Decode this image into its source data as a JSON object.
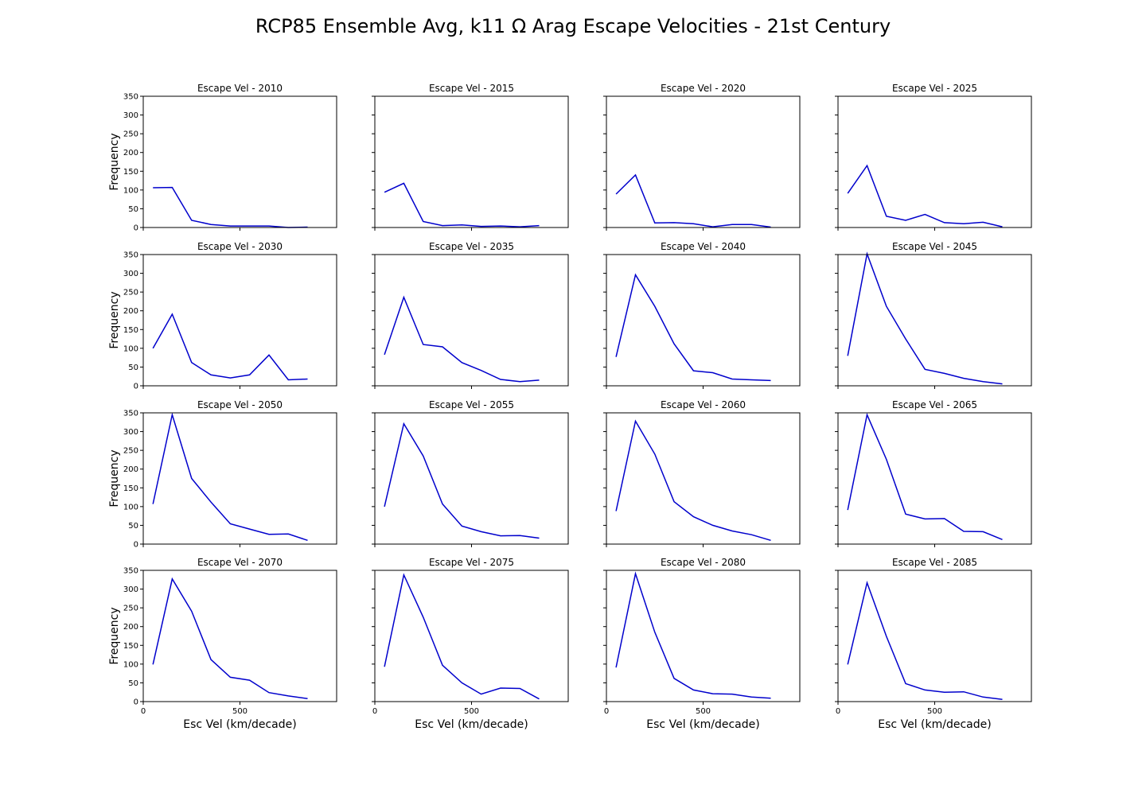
{
  "chart_title": "RCP85 Ensemble Avg, k11 Ω Arag Escape Velocities - 21st Century",
  "line_color": "#0000cc",
  "shared_axes": {
    "xlabel": "Esc Vel (km/decade)",
    "ylabel": "Frequency",
    "xlim": [
      0,
      1000
    ],
    "ylim": [
      0,
      350
    ],
    "xticks": [
      0,
      500
    ],
    "yticks": [
      0,
      50,
      100,
      150,
      200,
      250,
      300,
      350
    ],
    "grid": false
  },
  "chart_data": [
    {
      "type": "line",
      "title": "Escape Vel - 2010",
      "x": [
        50,
        150,
        250,
        350,
        450,
        550,
        650,
        750,
        850
      ],
      "y": [
        106,
        107,
        19,
        8,
        4,
        4,
        4,
        0,
        1
      ]
    },
    {
      "type": "line",
      "title": "Escape Vel - 2015",
      "x": [
        50,
        150,
        250,
        350,
        450,
        550,
        650,
        750,
        850
      ],
      "y": [
        94,
        118,
        16,
        5,
        7,
        3,
        4,
        2,
        5
      ]
    },
    {
      "type": "line",
      "title": "Escape Vel - 2020",
      "x": [
        50,
        150,
        250,
        350,
        450,
        550,
        650,
        750,
        850
      ],
      "y": [
        89,
        140,
        12,
        13,
        10,
        2,
        8,
        8,
        1
      ]
    },
    {
      "type": "line",
      "title": "Escape Vel - 2025",
      "x": [
        50,
        150,
        250,
        350,
        450,
        550,
        650,
        750,
        850
      ],
      "y": [
        91,
        165,
        30,
        19,
        35,
        13,
        10,
        14,
        2
      ]
    },
    {
      "type": "line",
      "title": "Escape Vel - 2030",
      "x": [
        50,
        150,
        250,
        350,
        450,
        550,
        650,
        750,
        850
      ],
      "y": [
        100,
        191,
        62,
        29,
        21,
        29,
        82,
        16,
        18
      ]
    },
    {
      "type": "line",
      "title": "Escape Vel - 2035",
      "x": [
        50,
        150,
        250,
        350,
        450,
        550,
        650,
        750,
        850
      ],
      "y": [
        83,
        236,
        110,
        104,
        62,
        41,
        17,
        11,
        15
      ]
    },
    {
      "type": "line",
      "title": "Escape Vel - 2040",
      "x": [
        50,
        150,
        250,
        350,
        450,
        550,
        650,
        750,
        850
      ],
      "y": [
        77,
        296,
        212,
        112,
        40,
        35,
        18,
        16,
        14
      ]
    },
    {
      "type": "line",
      "title": "Escape Vel - 2045",
      "x": [
        50,
        150,
        250,
        350,
        450,
        550,
        650,
        750,
        850
      ],
      "y": [
        80,
        352,
        212,
        125,
        44,
        33,
        20,
        11,
        5
      ]
    },
    {
      "type": "line",
      "title": "Escape Vel - 2050",
      "x": [
        50,
        150,
        250,
        350,
        450,
        550,
        650,
        750,
        850
      ],
      "y": [
        107,
        345,
        175,
        112,
        54,
        40,
        26,
        27,
        10
      ]
    },
    {
      "type": "line",
      "title": "Escape Vel - 2055",
      "x": [
        50,
        150,
        250,
        350,
        450,
        550,
        650,
        750,
        850
      ],
      "y": [
        100,
        321,
        235,
        107,
        48,
        33,
        22,
        23,
        16
      ]
    },
    {
      "type": "line",
      "title": "Escape Vel - 2060",
      "x": [
        50,
        150,
        250,
        350,
        450,
        550,
        650,
        750,
        850
      ],
      "y": [
        88,
        328,
        240,
        113,
        73,
        50,
        35,
        25,
        10
      ]
    },
    {
      "type": "line",
      "title": "Escape Vel - 2065",
      "x": [
        50,
        150,
        250,
        350,
        450,
        550,
        650,
        750,
        850
      ],
      "y": [
        91,
        345,
        226,
        80,
        67,
        68,
        34,
        33,
        12
      ]
    },
    {
      "type": "line",
      "title": "Escape Vel - 2070",
      "x": [
        50,
        150,
        250,
        350,
        450,
        550,
        650,
        750,
        850
      ],
      "y": [
        99,
        327,
        241,
        112,
        65,
        57,
        24,
        15,
        8
      ]
    },
    {
      "type": "line",
      "title": "Escape Vel - 2075",
      "x": [
        50,
        150,
        250,
        350,
        450,
        550,
        650,
        750,
        850
      ],
      "y": [
        93,
        338,
        225,
        97,
        50,
        20,
        36,
        35,
        7
      ]
    },
    {
      "type": "line",
      "title": "Escape Vel - 2080",
      "x": [
        50,
        150,
        250,
        350,
        450,
        550,
        650,
        750,
        850
      ],
      "y": [
        91,
        341,
        185,
        62,
        31,
        21,
        20,
        12,
        9
      ]
    },
    {
      "type": "line",
      "title": "Escape Vel - 2085",
      "x": [
        50,
        150,
        250,
        350,
        450,
        550,
        650,
        750,
        850
      ],
      "y": [
        99,
        317,
        174,
        48,
        31,
        25,
        26,
        12,
        6
      ]
    }
  ]
}
